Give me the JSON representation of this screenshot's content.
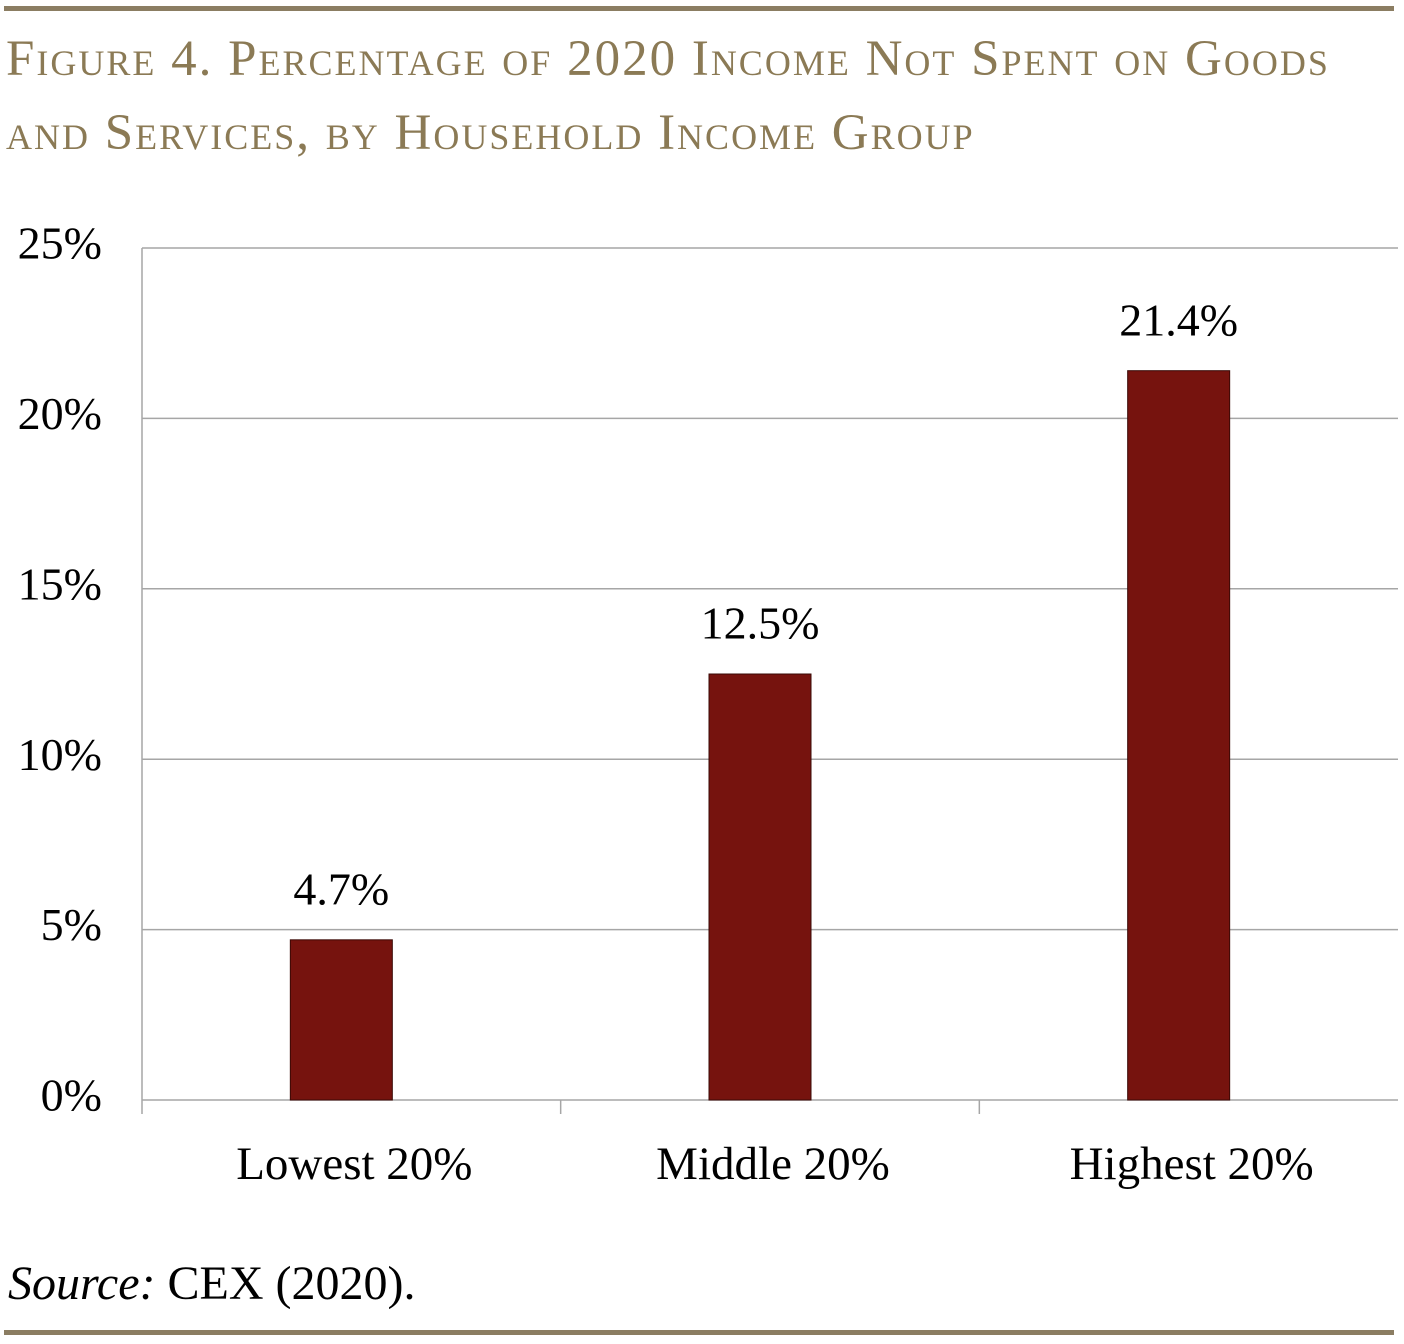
{
  "chart_data": {
    "type": "bar",
    "title": "Figure 4. Percentage of 2020 Income Not Spent on Goods and Services, by Household Income Group",
    "categories": [
      "Lowest 20%",
      "Middle 20%",
      "Highest 20%"
    ],
    "values": [
      4.7,
      12.5,
      21.4
    ],
    "value_labels": [
      "4.7%",
      "12.5%",
      "21.4%"
    ],
    "color": "#76130e",
    "ylim": [
      0,
      25
    ],
    "yticks": [
      {
        "value": 0,
        "label": "0%"
      },
      {
        "value": 5,
        "label": "5%"
      },
      {
        "value": 10,
        "label": "10%"
      },
      {
        "value": 15,
        "label": "15%"
      },
      {
        "value": 20,
        "label": "20%"
      },
      {
        "value": 25,
        "label": "25%"
      }
    ],
    "grid": true,
    "source_label": "Source:",
    "source": "CEX (2020)."
  }
}
